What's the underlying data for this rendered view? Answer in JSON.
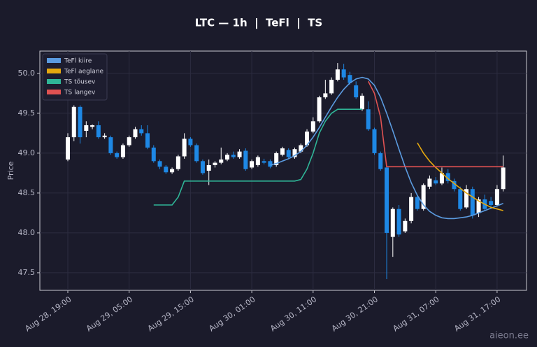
{
  "chart_data": {
    "type": "candlestick",
    "title": "LTC — 1h  |  TeFl  |  TS",
    "ylabel": "Price",
    "watermark": "aieon.ee",
    "x": [
      "Aug 28, 19:00",
      "Aug 28, 20:00",
      "Aug 28, 21:00",
      "Aug 28, 22:00",
      "Aug 28, 23:00",
      "Aug 29, 00:00",
      "Aug 29, 01:00",
      "Aug 29, 02:00",
      "Aug 29, 03:00",
      "Aug 29, 04:00",
      "Aug 29, 05:00",
      "Aug 29, 06:00",
      "Aug 29, 07:00",
      "Aug 29, 08:00",
      "Aug 29, 09:00",
      "Aug 29, 10:00",
      "Aug 29, 11:00",
      "Aug 29, 12:00",
      "Aug 29, 13:00",
      "Aug 29, 14:00",
      "Aug 29, 15:00",
      "Aug 29, 16:00",
      "Aug 29, 17:00",
      "Aug 29, 18:00",
      "Aug 29, 19:00",
      "Aug 29, 20:00",
      "Aug 29, 21:00",
      "Aug 29, 22:00",
      "Aug 29, 23:00",
      "Aug 30, 00:00",
      "Aug 30, 01:00",
      "Aug 30, 02:00",
      "Aug 30, 03:00",
      "Aug 30, 04:00",
      "Aug 30, 05:00",
      "Aug 30, 06:00",
      "Aug 30, 07:00",
      "Aug 30, 08:00",
      "Aug 30, 09:00",
      "Aug 30, 10:00",
      "Aug 30, 11:00",
      "Aug 30, 12:00",
      "Aug 30, 13:00",
      "Aug 30, 14:00",
      "Aug 30, 15:00",
      "Aug 30, 16:00",
      "Aug 30, 17:00",
      "Aug 30, 18:00",
      "Aug 30, 19:00",
      "Aug 30, 20:00",
      "Aug 30, 21:00",
      "Aug 30, 22:00",
      "Aug 30, 23:00",
      "Aug 31, 00:00",
      "Aug 31, 01:00",
      "Aug 31, 02:00",
      "Aug 31, 03:00",
      "Aug 31, 04:00",
      "Aug 31, 05:00",
      "Aug 31, 06:00",
      "Aug 31, 07:00",
      "Aug 31, 08:00",
      "Aug 31, 09:00",
      "Aug 31, 10:00",
      "Aug 31, 11:00",
      "Aug 31, 12:00",
      "Aug 31, 13:00",
      "Aug 31, 14:00",
      "Aug 31, 15:00",
      "Aug 31, 16:00",
      "Aug 31, 17:00",
      "Aug 31, 18:00"
    ],
    "open": [
      48.92,
      49.2,
      49.58,
      49.28,
      49.33,
      49.35,
      49.2,
      49.2,
      49.0,
      48.95,
      49.1,
      49.2,
      49.3,
      49.25,
      49.07,
      48.9,
      48.83,
      48.76,
      48.8,
      48.96,
      49.18,
      49.1,
      48.9,
      48.78,
      48.85,
      48.88,
      48.92,
      48.98,
      48.95,
      49.03,
      48.82,
      48.85,
      48.9,
      48.9,
      48.85,
      48.98,
      49.04,
      48.95,
      49.02,
      49.1,
      49.27,
      49.4,
      49.7,
      49.75,
      49.92,
      50.05,
      49.98,
      49.85,
      49.55,
      49.55,
      49.3,
      49.0,
      48.82,
      47.95,
      48.3,
      48.02,
      48.15,
      48.45,
      48.3,
      48.58,
      48.66,
      48.62,
      48.75,
      48.65,
      48.55,
      48.32,
      48.55,
      48.25,
      48.42,
      48.4,
      48.35,
      48.55
    ],
    "high": [
      49.25,
      49.6,
      49.6,
      49.4,
      49.36,
      49.4,
      49.25,
      49.22,
      49.02,
      49.12,
      49.22,
      49.33,
      49.35,
      49.35,
      49.1,
      48.92,
      48.85,
      48.82,
      48.98,
      49.25,
      49.2,
      49.12,
      48.92,
      48.92,
      48.9,
      49.07,
      49.0,
      49.02,
      49.05,
      49.06,
      48.92,
      48.97,
      48.93,
      48.92,
      49.02,
      49.08,
      49.06,
      49.07,
      49.12,
      49.3,
      49.45,
      49.72,
      49.92,
      49.95,
      50.13,
      50.12,
      50.02,
      49.9,
      49.75,
      49.65,
      49.32,
      49.02,
      48.85,
      48.32,
      48.35,
      48.18,
      48.5,
      48.48,
      48.62,
      48.72,
      48.7,
      48.82,
      48.8,
      48.68,
      48.58,
      48.6,
      48.58,
      48.45,
      48.48,
      48.45,
      48.6,
      48.97
    ],
    "low": [
      48.9,
      49.15,
      49.12,
      49.2,
      49.3,
      49.18,
      49.18,
      48.98,
      48.93,
      48.93,
      49.08,
      49.18,
      49.22,
      49.05,
      48.88,
      48.8,
      48.74,
      48.74,
      48.78,
      48.93,
      49.08,
      48.88,
      48.73,
      48.6,
      48.82,
      48.86,
      48.9,
      48.93,
      48.93,
      48.78,
      48.8,
      48.83,
      48.86,
      48.81,
      48.83,
      48.96,
      48.93,
      48.93,
      49.0,
      49.08,
      49.25,
      49.38,
      49.68,
      49.73,
      49.9,
      49.92,
      49.86,
      49.68,
      49.53,
      49.28,
      48.98,
      48.78,
      47.42,
      47.7,
      47.95,
      48.0,
      48.12,
      48.28,
      48.28,
      48.55,
      48.6,
      48.6,
      48.62,
      48.52,
      48.28,
      48.3,
      48.18,
      48.2,
      48.28,
      48.3,
      48.33,
      48.52
    ],
    "close": [
      49.2,
      49.58,
      49.2,
      49.35,
      49.35,
      49.2,
      49.22,
      49.0,
      48.95,
      49.1,
      49.2,
      49.3,
      49.25,
      49.07,
      48.9,
      48.83,
      48.76,
      48.8,
      48.96,
      49.18,
      49.1,
      48.9,
      48.75,
      48.85,
      48.88,
      48.92,
      48.98,
      48.95,
      49.02,
      48.8,
      48.9,
      48.95,
      48.88,
      48.83,
      49.0,
      49.06,
      48.95,
      49.05,
      49.1,
      49.27,
      49.4,
      49.7,
      49.75,
      49.92,
      50.05,
      49.95,
      49.88,
      49.7,
      49.72,
      49.3,
      49.0,
      48.8,
      48.0,
      48.3,
      47.98,
      48.15,
      48.45,
      48.3,
      48.6,
      48.68,
      48.62,
      48.75,
      48.65,
      48.55,
      48.3,
      48.55,
      48.22,
      48.42,
      48.3,
      48.35,
      48.55,
      48.82
    ],
    "up_color": "#ffffff",
    "down_color": "#1e88e5",
    "lines": [
      {
        "name": "TeFl kiire",
        "color": "#5b9be0",
        "values": [
          null,
          null,
          null,
          null,
          null,
          null,
          null,
          null,
          null,
          null,
          null,
          null,
          null,
          null,
          null,
          null,
          null,
          null,
          null,
          null,
          null,
          null,
          null,
          null,
          null,
          null,
          null,
          null,
          null,
          null,
          null,
          null,
          null,
          48.85,
          48.87,
          48.9,
          48.93,
          48.97,
          49.02,
          49.1,
          49.2,
          49.32,
          49.45,
          49.58,
          49.7,
          49.8,
          49.88,
          49.93,
          49.95,
          49.93,
          49.85,
          49.7,
          49.5,
          49.28,
          49.05,
          48.83,
          48.63,
          48.47,
          48.35,
          48.27,
          48.22,
          48.19,
          48.18,
          48.18,
          48.19,
          48.2,
          48.22,
          48.25,
          48.28,
          48.31,
          48.34,
          48.37
        ]
      },
      {
        "name": "TeFl aeglane",
        "color": "#e5a80f",
        "values": [
          null,
          null,
          null,
          null,
          null,
          null,
          null,
          null,
          null,
          null,
          null,
          null,
          null,
          null,
          null,
          null,
          null,
          null,
          null,
          null,
          null,
          null,
          null,
          null,
          null,
          null,
          null,
          null,
          null,
          null,
          null,
          null,
          null,
          null,
          null,
          null,
          null,
          null,
          null,
          null,
          null,
          null,
          null,
          null,
          null,
          null,
          null,
          null,
          null,
          null,
          null,
          null,
          null,
          null,
          null,
          null,
          null,
          49.13,
          49.0,
          48.9,
          48.82,
          48.75,
          48.68,
          48.62,
          48.56,
          48.5,
          48.45,
          48.4,
          48.36,
          48.32,
          48.3,
          48.28
        ]
      },
      {
        "name": "TS tõusev",
        "color": "#2fb597",
        "values": [
          null,
          null,
          null,
          null,
          null,
          null,
          null,
          null,
          null,
          null,
          null,
          null,
          null,
          null,
          48.35,
          48.35,
          48.35,
          48.35,
          48.45,
          48.65,
          48.65,
          48.65,
          48.65,
          48.65,
          48.65,
          48.65,
          48.65,
          48.65,
          48.65,
          48.65,
          48.65,
          48.65,
          48.65,
          48.65,
          48.65,
          48.65,
          48.65,
          48.65,
          48.67,
          48.8,
          49.0,
          49.25,
          49.4,
          49.5,
          49.55,
          49.55,
          49.55,
          49.55,
          49.55,
          null,
          null,
          null,
          null,
          null,
          null,
          null,
          null,
          null,
          null,
          null,
          null,
          null,
          null,
          null,
          null,
          null,
          null,
          null,
          null,
          null,
          null,
          null
        ]
      },
      {
        "name": "TS langev",
        "color": "#e05252",
        "values": [
          null,
          null,
          null,
          null,
          null,
          null,
          null,
          null,
          null,
          null,
          null,
          null,
          null,
          null,
          null,
          null,
          null,
          null,
          null,
          null,
          null,
          null,
          null,
          null,
          null,
          null,
          null,
          null,
          null,
          null,
          null,
          null,
          null,
          null,
          null,
          null,
          null,
          null,
          null,
          null,
          null,
          null,
          null,
          null,
          null,
          null,
          null,
          null,
          null,
          49.9,
          49.75,
          49.45,
          48.83,
          48.83,
          48.83,
          48.83,
          48.83,
          48.83,
          48.83,
          48.83,
          48.83,
          48.83,
          48.83,
          48.83,
          48.83,
          48.83,
          48.83,
          48.83,
          48.83,
          48.83,
          48.83,
          48.83
        ]
      }
    ],
    "xticks": [
      "Aug 28, 19:00",
      "Aug 29, 05:00",
      "Aug 29, 15:00",
      "Aug 30, 01:00",
      "Aug 30, 11:00",
      "Aug 30, 21:00",
      "Aug 31, 07:00",
      "Aug 31, 17:00"
    ],
    "ylim": [
      47.28,
      50.28
    ],
    "yticks": [
      47.5,
      {
        "value": 48.0,
        "label": "48.0"
      },
      48.5,
      {
        "value": 49.0,
        "label": "49.0"
      },
      49.5,
      {
        "value": 50.0,
        "label": "50.0"
      }
    ],
    "grid": true,
    "legend": "upper-left"
  }
}
